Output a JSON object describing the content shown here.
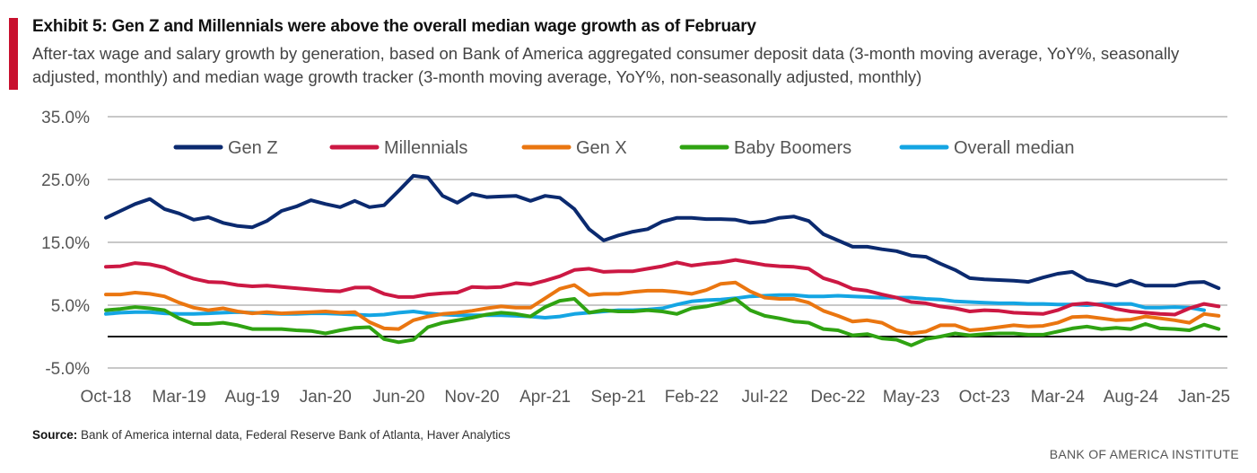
{
  "header": {
    "title": "Exhibit 5: Gen Z and Millennials were above the overall median wage growth as of February",
    "subtitle": "After-tax wage and salary growth by generation, based on Bank of America aggregated consumer deposit data (3-month moving average, YoY%, seasonally adjusted, monthly) and median wage growth tracker (3-month moving average, YoY%, non-seasonally adjusted, monthly)",
    "accent_color": "#c8102e"
  },
  "footer": {
    "source_label": "Source:",
    "source_text": " Bank of America internal data, Federal Reserve Bank of Atlanta, Haver Analytics",
    "brand": "BANK OF AMERICA INSTITUTE"
  },
  "chart_data": {
    "type": "line",
    "title": "",
    "xlabel": "",
    "ylabel": "",
    "ylim": [
      -5,
      35
    ],
    "yticks": [
      "35.0%",
      "25.0%",
      "15.0%",
      "5.0%",
      "-5.0%"
    ],
    "ytick_values": [
      35,
      25,
      15,
      5,
      -5
    ],
    "x_start": "Oct-18",
    "x_end": "Feb-25",
    "frequency": "monthly",
    "xtick_labels": [
      "Oct-18",
      "Mar-19",
      "Aug-19",
      "Jan-20",
      "Jun-20",
      "Nov-20",
      "Apr-21",
      "Sep-21",
      "Feb-22",
      "Jul-22",
      "Dec-22",
      "May-23",
      "Oct-23",
      "Mar-24",
      "Aug-24",
      "Jan-25"
    ],
    "grid": true,
    "zero_line": true,
    "legend": "top",
    "series": [
      {
        "name": "Gen Z",
        "color": "#0b2a6f",
        "values": [
          18.9,
          20.0,
          21.1,
          21.9,
          20.3,
          19.6,
          18.6,
          19.0,
          18.1,
          17.6,
          17.4,
          18.4,
          20.0,
          20.7,
          21.7,
          21.1,
          20.6,
          21.6,
          20.6,
          20.9,
          23.2,
          25.6,
          25.3,
          22.4,
          21.3,
          22.7,
          22.2,
          22.3,
          22.4,
          21.6,
          22.4,
          22.1,
          20.3,
          17.1,
          15.3,
          16.1,
          16.7,
          17.1,
          18.3,
          18.9,
          18.9,
          18.7,
          18.7,
          18.6,
          18.1,
          18.3,
          18.9,
          19.1,
          18.4,
          16.3,
          15.3,
          14.3,
          14.3,
          13.9,
          13.6,
          12.9,
          12.7,
          11.6,
          10.6,
          9.3,
          9.1,
          9.0,
          8.9,
          8.7,
          9.4,
          10.0,
          10.3,
          9.0,
          8.6,
          8.1,
          8.9,
          8.1,
          8.1,
          8.1,
          8.6,
          8.7,
          7.7
        ]
      },
      {
        "name": "Millennials",
        "color": "#cc1843",
        "values": [
          11.1,
          11.2,
          11.7,
          11.5,
          11.0,
          10.0,
          9.2,
          8.7,
          8.6,
          8.2,
          8.0,
          8.1,
          7.9,
          7.7,
          7.5,
          7.3,
          7.2,
          7.8,
          7.8,
          6.8,
          6.3,
          6.3,
          6.7,
          6.9,
          7.0,
          7.9,
          7.8,
          7.9,
          8.5,
          8.3,
          8.9,
          9.6,
          10.6,
          10.8,
          10.3,
          10.4,
          10.4,
          10.8,
          11.2,
          11.8,
          11.3,
          11.6,
          11.8,
          12.2,
          11.8,
          11.4,
          11.2,
          11.1,
          10.8,
          9.3,
          8.6,
          7.6,
          7.3,
          6.7,
          6.2,
          5.5,
          5.3,
          4.8,
          4.5,
          4.0,
          4.2,
          4.1,
          3.8,
          3.7,
          3.6,
          4.2,
          5.1,
          5.3,
          5.0,
          4.4,
          4.0,
          3.8,
          3.6,
          3.5,
          4.5,
          5.2,
          4.8
        ]
      },
      {
        "name": "Gen X",
        "color": "#ea7610",
        "values": [
          6.7,
          6.7,
          7.0,
          6.8,
          6.4,
          5.4,
          4.6,
          4.2,
          4.5,
          4.0,
          3.7,
          3.9,
          3.7,
          3.8,
          3.9,
          4.0,
          3.8,
          3.9,
          2.3,
          1.3,
          1.2,
          2.6,
          3.2,
          3.6,
          3.8,
          4.1,
          4.5,
          4.8,
          4.6,
          4.6,
          6.1,
          7.6,
          8.2,
          6.6,
          6.8,
          6.8,
          7.1,
          7.3,
          7.3,
          7.1,
          6.8,
          7.4,
          8.4,
          8.6,
          7.2,
          6.2,
          6.0,
          6.0,
          5.4,
          4.1,
          3.3,
          2.4,
          2.6,
          2.2,
          1.0,
          0.5,
          0.8,
          1.8,
          1.8,
          1.0,
          1.2,
          1.5,
          1.8,
          1.6,
          1.7,
          2.2,
          3.1,
          3.2,
          2.9,
          2.6,
          2.7,
          3.2,
          2.9,
          2.6,
          2.2,
          3.6,
          3.3
        ]
      },
      {
        "name": "Baby Boomers",
        "color": "#2fa312",
        "values": [
          4.2,
          4.4,
          4.7,
          4.5,
          4.2,
          2.9,
          2.0,
          2.0,
          2.2,
          1.8,
          1.2,
          1.2,
          1.2,
          1.0,
          0.9,
          0.5,
          1.0,
          1.4,
          1.5,
          -0.4,
          -0.9,
          -0.5,
          1.5,
          2.2,
          2.6,
          3.0,
          3.5,
          3.8,
          3.6,
          3.2,
          4.7,
          5.7,
          6.0,
          3.8,
          4.2,
          4.0,
          4.0,
          4.2,
          4.0,
          3.6,
          4.5,
          4.8,
          5.3,
          6.0,
          4.2,
          3.3,
          2.9,
          2.4,
          2.2,
          1.2,
          1.0,
          0.2,
          0.4,
          -0.3,
          -0.5,
          -1.4,
          -0.4,
          0.0,
          0.5,
          0.2,
          0.4,
          0.5,
          0.5,
          0.3,
          0.3,
          0.8,
          1.3,
          1.6,
          1.2,
          1.4,
          1.2,
          2.0,
          1.3,
          1.2,
          1.0,
          1.9,
          1.2
        ]
      },
      {
        "name": "Overall median",
        "color": "#14a5e3",
        "values": [
          3.6,
          3.8,
          3.9,
          3.9,
          3.7,
          3.6,
          3.6,
          3.7,
          3.8,
          3.9,
          3.8,
          3.7,
          3.6,
          3.6,
          3.7,
          3.7,
          3.6,
          3.5,
          3.4,
          3.5,
          3.8,
          4.0,
          3.7,
          3.5,
          3.4,
          3.4,
          3.4,
          3.4,
          3.3,
          3.2,
          3.0,
          3.2,
          3.6,
          3.8,
          4.0,
          4.2,
          4.2,
          4.3,
          4.5,
          5.1,
          5.6,
          5.8,
          5.9,
          6.1,
          6.4,
          6.5,
          6.6,
          6.6,
          6.4,
          6.4,
          6.5,
          6.4,
          6.3,
          6.2,
          6.2,
          6.2,
          6.0,
          5.9,
          5.6,
          5.5,
          5.4,
          5.3,
          5.3,
          5.2,
          5.2,
          5.1,
          5.1,
          5.0,
          5.2,
          5.2,
          5.2,
          4.6,
          4.6,
          4.7,
          4.6,
          4.2,
          null
        ]
      }
    ]
  }
}
